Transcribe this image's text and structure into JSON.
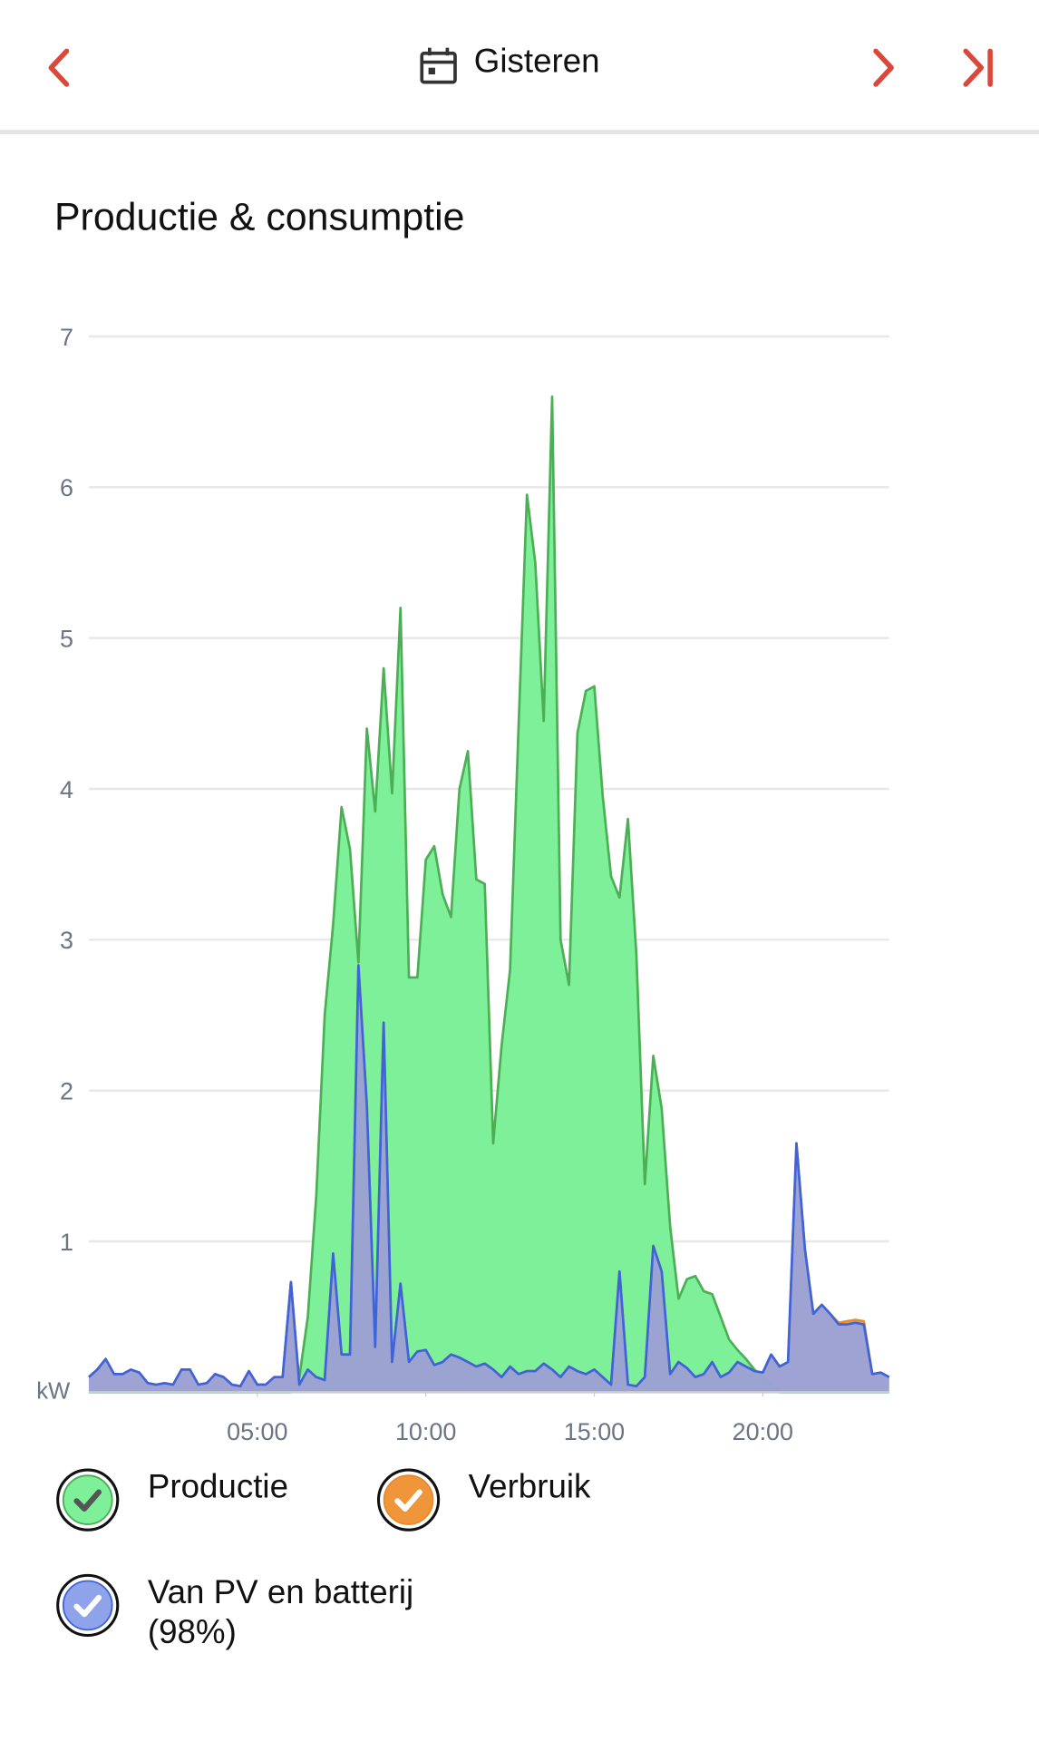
{
  "header": {
    "title": "Gisteren"
  },
  "chart_data": {
    "type": "area",
    "title": "Productie & consumptie",
    "y_unit": "kW",
    "x": [
      0,
      0.25,
      0.5,
      0.75,
      1,
      1.25,
      1.5,
      1.75,
      2,
      2.25,
      2.5,
      2.75,
      3,
      3.25,
      3.5,
      3.75,
      4,
      4.25,
      4.5,
      4.75,
      5,
      5.25,
      5.5,
      5.75,
      6,
      6.25,
      6.5,
      6.75,
      7,
      7.25,
      7.5,
      7.75,
      8,
      8.25,
      8.5,
      8.75,
      9,
      9.25,
      9.5,
      9.75,
      10,
      10.25,
      10.5,
      10.75,
      11,
      11.25,
      11.5,
      11.75,
      12,
      12.25,
      12.5,
      12.75,
      13,
      13.25,
      13.5,
      13.75,
      14,
      14.25,
      14.5,
      14.75,
      15,
      15.25,
      15.5,
      15.75,
      16,
      16.25,
      16.5,
      16.75,
      17,
      17.25,
      17.5,
      17.75,
      18,
      18.25,
      18.5,
      18.75,
      19,
      19.25,
      19.5,
      19.75,
      20,
      20.25,
      20.5,
      20.75,
      21,
      21.25,
      21.5,
      21.75,
      22,
      22.25,
      22.5,
      22.75,
      23,
      23.25,
      23.5,
      23.75
    ],
    "xlim": [
      0,
      23.75
    ],
    "xticks": [
      {
        "value": 5,
        "label": "05:00"
      },
      {
        "value": 10,
        "label": "10:00"
      },
      {
        "value": 15,
        "label": "15:00"
      },
      {
        "value": 20,
        "label": "20:00"
      }
    ],
    "ylim": [
      0,
      7
    ],
    "yticks": [
      1,
      2,
      3,
      4,
      5,
      6,
      7
    ],
    "grid": true,
    "series": [
      {
        "name": "Productie",
        "color": "#7ef09a",
        "stroke": "#4cae55",
        "values": [
          0,
          0,
          0,
          0,
          0,
          0,
          0,
          0,
          0,
          0,
          0,
          0,
          0,
          0,
          0,
          0,
          0,
          0,
          0,
          0,
          0,
          0,
          0,
          0,
          0,
          0.1,
          0.5,
          1.3,
          2.5,
          3.1,
          3.88,
          3.6,
          2.85,
          4.4,
          3.85,
          4.8,
          3.97,
          5.2,
          2.75,
          2.75,
          3.53,
          3.62,
          3.3,
          3.15,
          4.0,
          4.25,
          3.4,
          3.37,
          1.65,
          2.3,
          2.8,
          4.4,
          5.95,
          5.5,
          4.45,
          6.6,
          3.0,
          2.7,
          4.37,
          4.65,
          4.68,
          3.95,
          3.42,
          3.28,
          3.8,
          2.9,
          1.38,
          2.23,
          1.88,
          1.1,
          0.62,
          0.75,
          0.77,
          0.67,
          0.65,
          0.5,
          0.35,
          0.28,
          0.22,
          0.15,
          0.1,
          0.05,
          0,
          0,
          0,
          0,
          0,
          0,
          0,
          0,
          0,
          0,
          0,
          0,
          0,
          0
        ]
      },
      {
        "name": "Verbruik",
        "color": "#f0963a",
        "stroke": "#e8892c",
        "values": [
          0.1,
          0.15,
          0.22,
          0.12,
          0.12,
          0.15,
          0.13,
          0.06,
          0.05,
          0.06,
          0.05,
          0.15,
          0.15,
          0.05,
          0.06,
          0.12,
          0.1,
          0.05,
          0.04,
          0.14,
          0.05,
          0.05,
          0.1,
          0.1,
          0.73,
          0.05,
          0.15,
          0.1,
          0.08,
          0.92,
          0.25,
          0.25,
          2.83,
          1.9,
          0.3,
          2.45,
          0.2,
          0.72,
          0.2,
          0.27,
          0.28,
          0.18,
          0.2,
          0.25,
          0.23,
          0.2,
          0.17,
          0.19,
          0.15,
          0.1,
          0.17,
          0.12,
          0.14,
          0.14,
          0.19,
          0.15,
          0.1,
          0.17,
          0.14,
          0.12,
          0.15,
          0.1,
          0.05,
          0.8,
          0.05,
          0.04,
          0.1,
          0.97,
          0.8,
          0.12,
          0.2,
          0.16,
          0.1,
          0.12,
          0.2,
          0.1,
          0.13,
          0.2,
          0.17,
          0.14,
          0.13,
          0.25,
          0.17,
          0.2,
          1.65,
          0.95,
          0.52,
          0.58,
          0.52,
          0.46,
          0.47,
          0.48,
          0.47,
          0.12,
          0.13,
          0.1
        ]
      },
      {
        "name": "Van PV en batterij (98%)",
        "color": "#8fa3ea",
        "stroke": "#3f63d9",
        "values": [
          0.1,
          0.15,
          0.22,
          0.12,
          0.12,
          0.15,
          0.13,
          0.06,
          0.05,
          0.06,
          0.05,
          0.15,
          0.15,
          0.05,
          0.06,
          0.12,
          0.1,
          0.05,
          0.04,
          0.14,
          0.05,
          0.05,
          0.1,
          0.1,
          0.73,
          0.05,
          0.15,
          0.1,
          0.08,
          0.92,
          0.25,
          0.25,
          2.83,
          1.9,
          0.3,
          2.45,
          0.2,
          0.72,
          0.2,
          0.27,
          0.28,
          0.18,
          0.2,
          0.25,
          0.23,
          0.2,
          0.17,
          0.19,
          0.15,
          0.1,
          0.17,
          0.12,
          0.14,
          0.14,
          0.19,
          0.15,
          0.1,
          0.17,
          0.14,
          0.12,
          0.15,
          0.1,
          0.05,
          0.8,
          0.05,
          0.04,
          0.1,
          0.97,
          0.8,
          0.12,
          0.2,
          0.16,
          0.1,
          0.12,
          0.2,
          0.1,
          0.13,
          0.2,
          0.17,
          0.14,
          0.13,
          0.25,
          0.17,
          0.2,
          1.65,
          0.95,
          0.52,
          0.58,
          0.52,
          0.45,
          0.45,
          0.46,
          0.45,
          0.12,
          0.13,
          0.1
        ]
      }
    ]
  }
}
